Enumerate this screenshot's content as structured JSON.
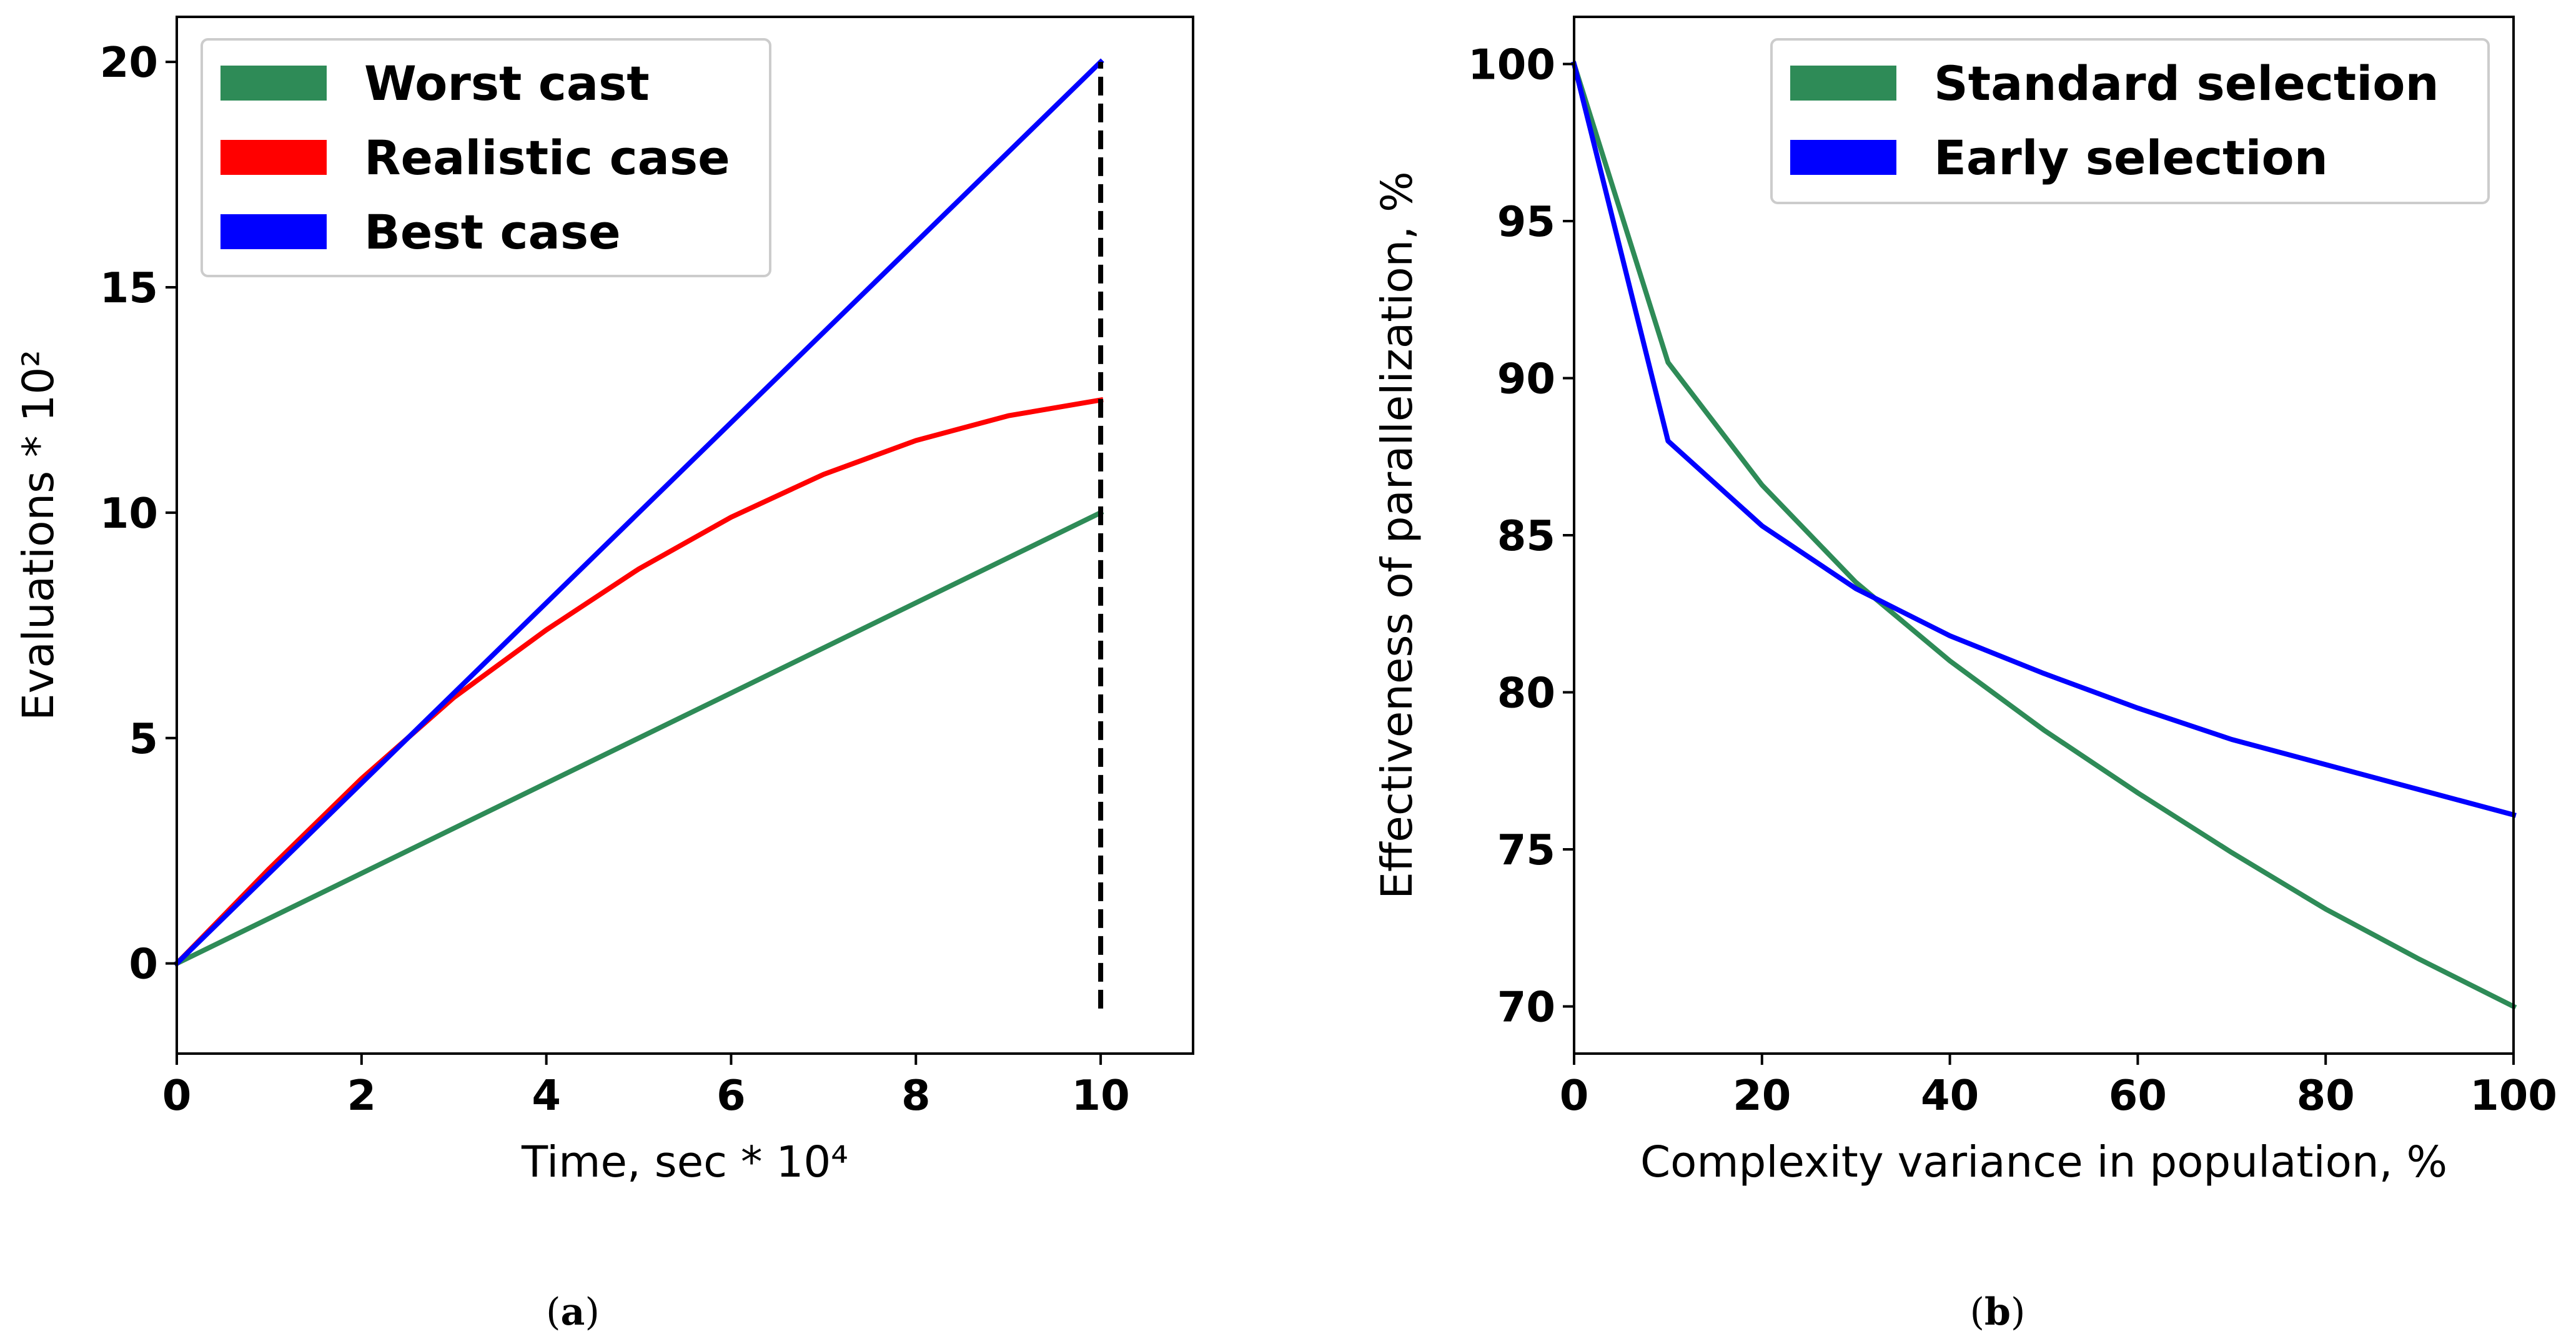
{
  "chart_data": [
    {
      "type": "line",
      "caption": "(a)",
      "xlabel": "Time, sec * 10⁴",
      "ylabel": "Evaluations * 10²",
      "xlim": [
        0,
        11
      ],
      "ylim": [
        -2,
        21
      ],
      "xticks": [
        0,
        2,
        4,
        6,
        8,
        10
      ],
      "yticks": [
        0,
        5,
        10,
        15,
        20
      ],
      "legend_position": "top-left",
      "grid": false,
      "series": [
        {
          "name": "Worst cast",
          "color": "#2e8b57",
          "x": [
            0,
            10
          ],
          "y": [
            0,
            10
          ]
        },
        {
          "name": "Realistic case",
          "color": "#ff0000",
          "x": [
            0,
            1,
            2,
            3,
            4,
            5,
            6,
            7,
            8,
            9,
            10
          ],
          "y": [
            0,
            2.1,
            4.1,
            5.9,
            7.4,
            8.75,
            9.9,
            10.85,
            11.6,
            12.15,
            12.5
          ]
        },
        {
          "name": "Best case",
          "color": "#0000ff",
          "x": [
            0,
            10
          ],
          "y": [
            0,
            20
          ]
        }
      ],
      "reference_line": {
        "type": "vertical",
        "x": 10,
        "y_from": -1,
        "y_to": 20,
        "style": "dashed",
        "color": "#000000"
      }
    },
    {
      "type": "line",
      "caption": "(b)",
      "xlabel": "Complexity variance in population, %",
      "ylabel": "Effectiveness of parallelization, %",
      "xlim": [
        0,
        100
      ],
      "ylim": [
        68.5,
        101.5
      ],
      "xticks": [
        0,
        20,
        40,
        60,
        80,
        100
      ],
      "yticks": [
        70,
        75,
        80,
        85,
        90,
        95,
        100
      ],
      "legend_position": "top-right",
      "grid": false,
      "series": [
        {
          "name": "Standard selection",
          "color": "#2e8b57",
          "x": [
            0,
            10,
            20,
            30,
            40,
            50,
            60,
            70,
            80,
            90,
            100
          ],
          "y": [
            100,
            90.5,
            86.6,
            83.5,
            81.0,
            78.8,
            76.8,
            74.9,
            73.1,
            71.5,
            70.0
          ]
        },
        {
          "name": "Early selection",
          "color": "#0000ff",
          "x": [
            0,
            10,
            20,
            30,
            40,
            50,
            60,
            70,
            80,
            90,
            100
          ],
          "y": [
            100,
            88.0,
            85.3,
            83.3,
            81.8,
            80.6,
            79.5,
            78.5,
            77.7,
            76.9,
            76.1
          ]
        }
      ]
    }
  ]
}
